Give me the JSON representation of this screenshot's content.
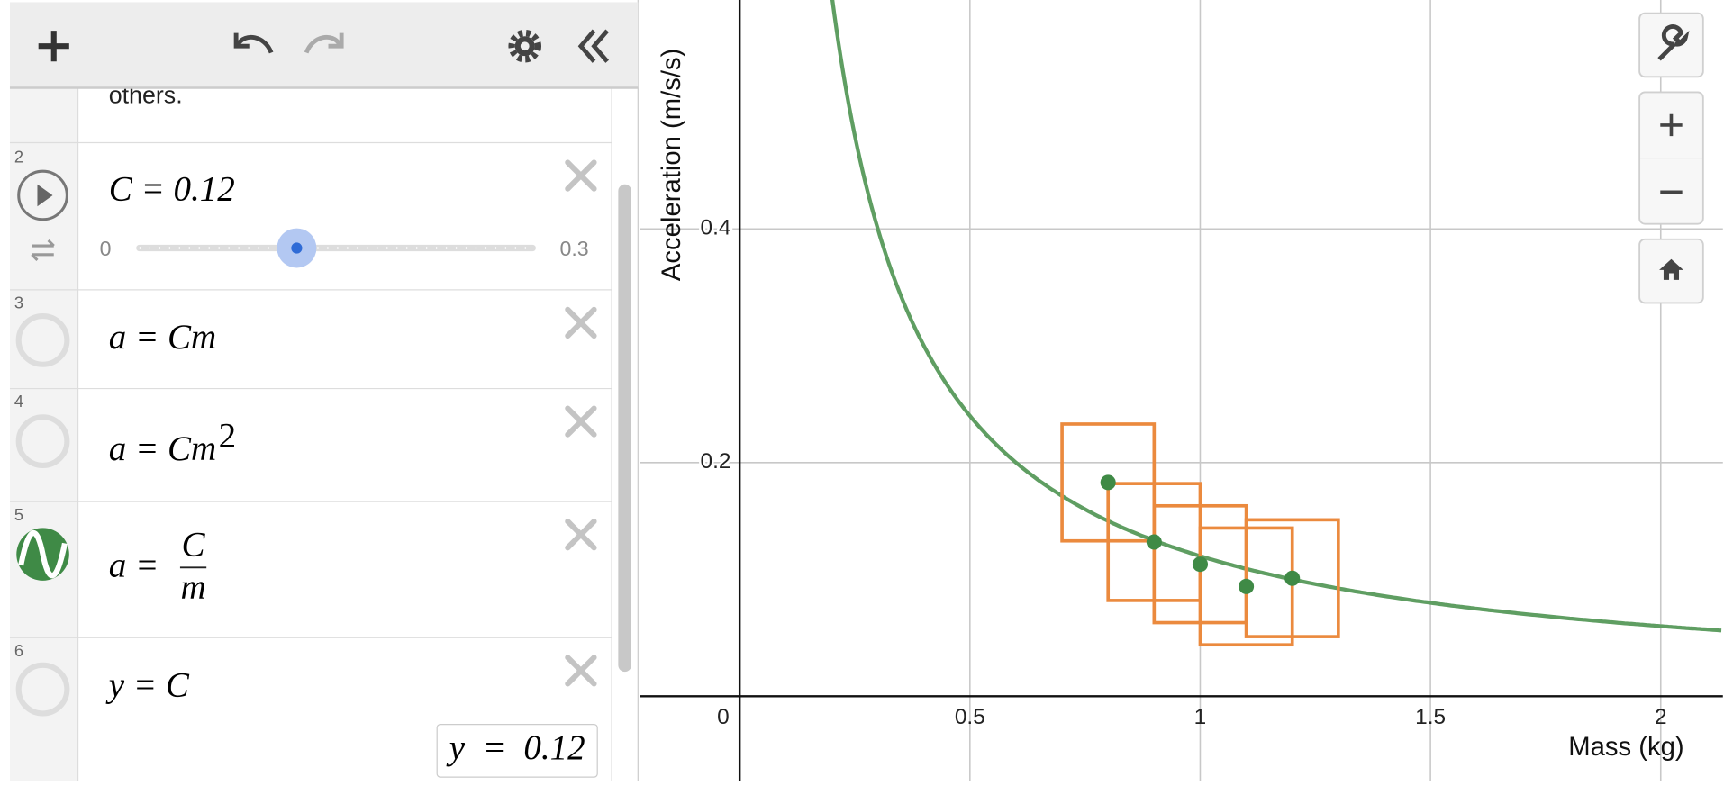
{
  "expressions": [
    {
      "text": "others."
    },
    {
      "number": "2",
      "expr": "C = 0.12",
      "slider": {
        "min": 0,
        "max": 0.3,
        "value": 0.12
      }
    },
    {
      "number": "3",
      "expr": "a = Cm"
    },
    {
      "number": "4",
      "expr": "a = Cm",
      "sup": "2"
    },
    {
      "number": "5",
      "lhs": "a =",
      "num": "C",
      "den": "m"
    },
    {
      "number": "6",
      "expr": "y = C",
      "result": "y  =  0.12"
    }
  ],
  "chart_data": {
    "type": "scatter",
    "x_label": "Mass (kg)",
    "y_label": "Acceleration (m/s/s)",
    "xlim": [
      -0.216,
      2.135
    ],
    "ylim": [
      -0.073,
      0.596
    ],
    "xticks": [
      0,
      0.5,
      1,
      1.5,
      2
    ],
    "yticks": [
      0.2,
      0.4
    ],
    "grid": true,
    "x": [
      0.8,
      0.9,
      1,
      1.1,
      1.2
    ],
    "y": [
      0.183,
      0.132,
      0.113,
      0.094,
      0.101
    ],
    "x_error": 0.1,
    "y_error": 0.05,
    "point_color": "#3f8a46",
    "box_color": "#eb8a3e",
    "curve_color": "#5f9e62"
  }
}
